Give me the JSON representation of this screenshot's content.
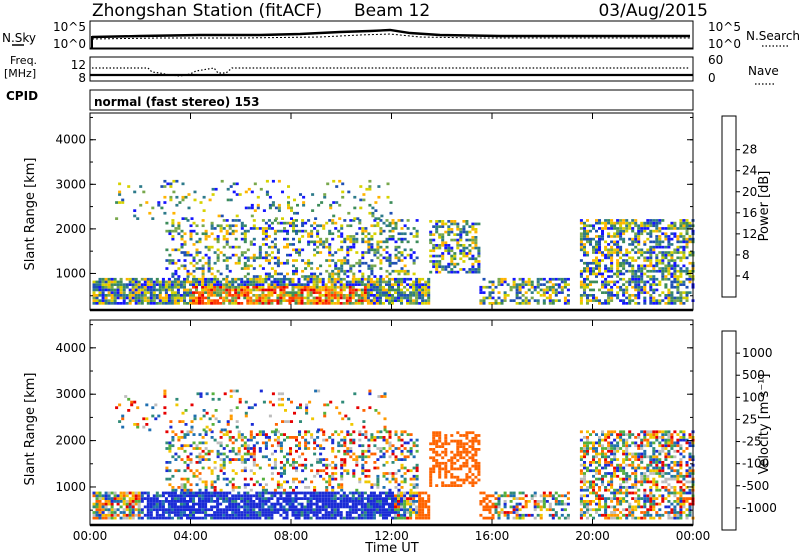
{
  "header": {
    "station": "Zhongshan Station (fitACF)",
    "beam": "Beam 12",
    "date": "03/Aug/2015"
  },
  "noise_panel": {
    "left_label": "N.Sky",
    "left_ticks": [
      "10^5",
      "10^0"
    ],
    "right_label": "N.Search",
    "right_ticks": [
      "10^5",
      "10^0"
    ]
  },
  "freq_panel": {
    "left_label_line1": "Freq.",
    "left_label_line2": "[MHz]",
    "left_ticks": [
      "12",
      "8"
    ],
    "right_label": "Nave",
    "right_ticks": [
      "60",
      "0"
    ],
    "cpid_label": "CPID",
    "cpid_text": "normal (fast stereo) 153"
  },
  "chart_data": [
    {
      "type": "heatmap",
      "title": "",
      "ylabel": "Slant Range [km]",
      "ylim": [
        180,
        4600
      ],
      "yticks": [
        "1000",
        "2000",
        "3000",
        "4000"
      ],
      "xlabel": "Time UT",
      "xticks": [
        "00:00",
        "04:00",
        "08:00",
        "12:00",
        "16:00",
        "20:00",
        "00:00"
      ],
      "colorbar": {
        "label": "Power [dB]",
        "ticks": [
          "4",
          "8",
          "12",
          "16",
          "20",
          "24",
          "28"
        ],
        "colors": [
          "#1414ff",
          "#1e4fb4",
          "#2d7a8a",
          "#3c8c5a",
          "#78a84c",
          "#d6d200",
          "#ffb400",
          "#ff7800",
          "#ff3c00",
          "#e60000"
        ]
      }
    },
    {
      "type": "heatmap",
      "title": "",
      "ylabel": "Slant Range [km]",
      "ylim": [
        180,
        4600
      ],
      "yticks": [
        "1000",
        "2000",
        "3000",
        "4000"
      ],
      "xlabel": "Time UT",
      "xticks": [
        "00:00",
        "04:00",
        "08:00",
        "12:00",
        "16:00",
        "20:00",
        "00:00"
      ],
      "colorbar": {
        "label": "Velocity [m s⁻¹]",
        "ticks": [
          "1000",
          "500",
          "100",
          "25",
          "-25",
          "-100",
          "-500",
          "-1000"
        ],
        "colors": [
          "#1a2bd6",
          "#1e6fb0",
          "#2f8a78",
          "#55b03c",
          "#bdbdbd",
          "#f0c800",
          "#ff9a00",
          "#ff6400",
          "#e60000"
        ]
      }
    }
  ]
}
